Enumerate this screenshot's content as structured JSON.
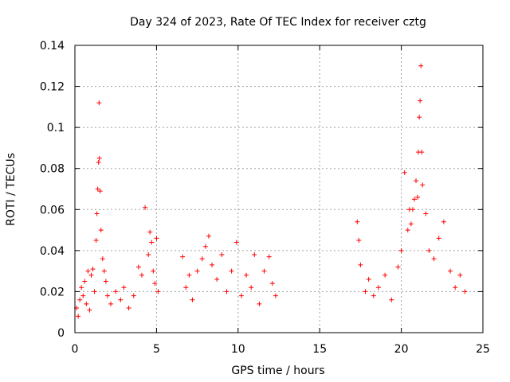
{
  "chart_data": {
    "type": "scatter",
    "title": "Day 324 of 2023, Rate Of TEC Index for receiver cztg",
    "xlabel": "GPS time / hours",
    "ylabel": "ROTI / TECUs",
    "xlim": [
      0,
      25
    ],
    "ylim": [
      0,
      0.14
    ],
    "xticks": [
      0,
      5,
      10,
      15,
      20,
      25
    ],
    "xtick_labels": [
      "0",
      "5",
      "10",
      "15",
      "20",
      "25"
    ],
    "yticks": [
      0,
      0.02,
      0.04,
      0.06,
      0.08,
      0.1,
      0.12,
      0.14
    ],
    "ytick_labels": [
      "0",
      "0.02",
      "0.04",
      "0.06",
      "0.08",
      "0.1",
      "0.12",
      "0.14"
    ],
    "grid": true,
    "marker": "+",
    "color": "#ff0000",
    "series": [
      {
        "name": "ROTI",
        "points": [
          [
            0.1,
            0.012
          ],
          [
            0.2,
            0.008
          ],
          [
            0.3,
            0.016
          ],
          [
            0.4,
            0.022
          ],
          [
            0.5,
            0.018
          ],
          [
            0.6,
            0.025
          ],
          [
            0.7,
            0.014
          ],
          [
            0.8,
            0.03
          ],
          [
            0.9,
            0.011
          ],
          [
            1.0,
            0.028
          ],
          [
            1.1,
            0.031
          ],
          [
            1.2,
            0.02
          ],
          [
            1.3,
            0.045
          ],
          [
            1.35,
            0.058
          ],
          [
            1.4,
            0.07
          ],
          [
            1.45,
            0.083
          ],
          [
            1.48,
            0.112
          ],
          [
            1.5,
            0.085
          ],
          [
            1.55,
            0.069
          ],
          [
            1.6,
            0.05
          ],
          [
            1.7,
            0.036
          ],
          [
            1.8,
            0.03
          ],
          [
            1.9,
            0.025
          ],
          [
            2.0,
            0.018
          ],
          [
            2.2,
            0.014
          ],
          [
            2.5,
            0.02
          ],
          [
            2.8,
            0.016
          ],
          [
            3.0,
            0.022
          ],
          [
            3.3,
            0.012
          ],
          [
            3.6,
            0.018
          ],
          [
            3.9,
            0.032
          ],
          [
            4.1,
            0.028
          ],
          [
            4.3,
            0.061
          ],
          [
            4.5,
            0.038
          ],
          [
            4.6,
            0.049
          ],
          [
            4.7,
            0.044
          ],
          [
            4.8,
            0.03
          ],
          [
            4.9,
            0.024
          ],
          [
            5.0,
            0.046
          ],
          [
            5.1,
            0.02
          ],
          [
            6.6,
            0.037
          ],
          [
            6.8,
            0.022
          ],
          [
            7.0,
            0.028
          ],
          [
            7.2,
            0.016
          ],
          [
            7.5,
            0.03
          ],
          [
            7.8,
            0.036
          ],
          [
            8.0,
            0.042
          ],
          [
            8.2,
            0.047
          ],
          [
            8.4,
            0.033
          ],
          [
            8.7,
            0.026
          ],
          [
            9.0,
            0.038
          ],
          [
            9.3,
            0.02
          ],
          [
            9.6,
            0.03
          ],
          [
            9.9,
            0.044
          ],
          [
            10.2,
            0.018
          ],
          [
            10.5,
            0.028
          ],
          [
            10.8,
            0.022
          ],
          [
            11.0,
            0.038
          ],
          [
            11.3,
            0.014
          ],
          [
            11.6,
            0.03
          ],
          [
            11.9,
            0.037
          ],
          [
            12.1,
            0.024
          ],
          [
            12.3,
            0.018
          ],
          [
            17.3,
            0.054
          ],
          [
            17.4,
            0.045
          ],
          [
            17.5,
            0.033
          ],
          [
            17.8,
            0.02
          ],
          [
            18.0,
            0.026
          ],
          [
            18.3,
            0.018
          ],
          [
            18.6,
            0.022
          ],
          [
            19.0,
            0.028
          ],
          [
            19.4,
            0.016
          ],
          [
            19.8,
            0.032
          ],
          [
            20.0,
            0.04
          ],
          [
            20.2,
            0.078
          ],
          [
            20.4,
            0.05
          ],
          [
            20.5,
            0.06
          ],
          [
            20.6,
            0.053
          ],
          [
            20.7,
            0.06
          ],
          [
            20.8,
            0.065
          ],
          [
            20.9,
            0.074
          ],
          [
            21.0,
            0.066
          ],
          [
            21.05,
            0.088
          ],
          [
            21.1,
            0.105
          ],
          [
            21.15,
            0.113
          ],
          [
            21.2,
            0.13
          ],
          [
            21.25,
            0.088
          ],
          [
            21.3,
            0.072
          ],
          [
            21.5,
            0.058
          ],
          [
            21.7,
            0.04
          ],
          [
            22.0,
            0.036
          ],
          [
            22.3,
            0.046
          ],
          [
            22.6,
            0.054
          ],
          [
            23.0,
            0.03
          ],
          [
            23.3,
            0.022
          ],
          [
            23.6,
            0.028
          ],
          [
            23.9,
            0.02
          ]
        ]
      }
    ]
  }
}
